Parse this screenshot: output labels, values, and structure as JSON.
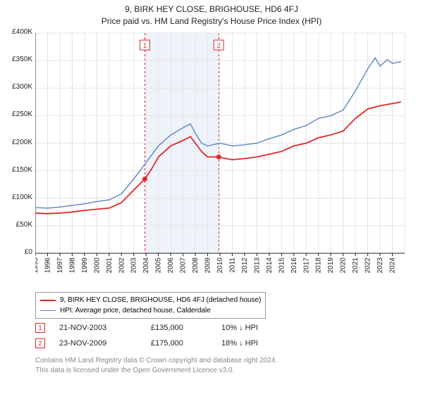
{
  "title_main": "9, BIRK HEY CLOSE, BRIGHOUSE, HD6 4FJ",
  "title_sub": "Price paid vs. HM Land Registry's House Price Index (HPI)",
  "chart": {
    "type": "line",
    "background_color": "#ffffff",
    "grid_color": "#e4e4e4",
    "axis_color": "#222222",
    "tick_fontsize": 10,
    "ylabel_prefix": "£",
    "ylim": [
      0,
      400000
    ],
    "ytick_step": 50000,
    "yticks": [
      "£0",
      "£50K",
      "£100K",
      "£150K",
      "£200K",
      "£250K",
      "£300K",
      "£350K",
      "£400K"
    ],
    "x_start_year": 1995,
    "x_end_year": 2025,
    "xticks": [
      "1995",
      "1996",
      "1997",
      "1998",
      "1999",
      "2000",
      "2001",
      "2002",
      "2003",
      "2004",
      "2005",
      "2006",
      "2007",
      "2008",
      "2009",
      "2010",
      "2011",
      "2012",
      "2013",
      "2014",
      "2015",
      "2016",
      "2017",
      "2018",
      "2019",
      "2020",
      "2021",
      "2022",
      "2023",
      "2024"
    ],
    "shaded_band": {
      "start": 2003.9,
      "end": 2009.9,
      "fill": "#eef3fa",
      "dash_color": "#e3252a"
    },
    "series": [
      {
        "name": "property",
        "label": "9, BIRK HEY CLOSE, BRIGHOUSE, HD6 4FJ (detached house)",
        "color": "#e3252a",
        "line_width": 1.8,
        "values": [
          [
            1995,
            73000
          ],
          [
            1996,
            72000
          ],
          [
            1997,
            73000
          ],
          [
            1998,
            75000
          ],
          [
            1999,
            78000
          ],
          [
            2000,
            80000
          ],
          [
            2001,
            82000
          ],
          [
            2002,
            92000
          ],
          [
            2003,
            115000
          ],
          [
            2003.9,
            135000
          ],
          [
            2004.5,
            155000
          ],
          [
            2005,
            175000
          ],
          [
            2006,
            195000
          ],
          [
            2007,
            205000
          ],
          [
            2007.6,
            212000
          ],
          [
            2008,
            200000
          ],
          [
            2008.5,
            185000
          ],
          [
            2009,
            175000
          ],
          [
            2009.9,
            175000
          ],
          [
            2010.5,
            172000
          ],
          [
            2011,
            170000
          ],
          [
            2012,
            172000
          ],
          [
            2013,
            175000
          ],
          [
            2014,
            180000
          ],
          [
            2015,
            185000
          ],
          [
            2016,
            195000
          ],
          [
            2017,
            200000
          ],
          [
            2018,
            210000
          ],
          [
            2019,
            215000
          ],
          [
            2020,
            222000
          ],
          [
            2021,
            245000
          ],
          [
            2022,
            262000
          ],
          [
            2023,
            268000
          ],
          [
            2024,
            272000
          ],
          [
            2024.7,
            275000
          ]
        ]
      },
      {
        "name": "hpi",
        "label": "HPI: Average price, detached house, Calderdale",
        "color": "#5b84c4",
        "line_width": 1.4,
        "values": [
          [
            1995,
            83000
          ],
          [
            1996,
            82000
          ],
          [
            1997,
            84000
          ],
          [
            1998,
            87000
          ],
          [
            1999,
            90000
          ],
          [
            2000,
            94000
          ],
          [
            2001,
            97000
          ],
          [
            2002,
            108000
          ],
          [
            2003,
            135000
          ],
          [
            2004,
            165000
          ],
          [
            2005,
            195000
          ],
          [
            2006,
            215000
          ],
          [
            2007,
            228000
          ],
          [
            2007.6,
            235000
          ],
          [
            2008,
            218000
          ],
          [
            2008.5,
            200000
          ],
          [
            2009,
            195000
          ],
          [
            2010,
            200000
          ],
          [
            2011,
            195000
          ],
          [
            2012,
            197000
          ],
          [
            2013,
            200000
          ],
          [
            2014,
            208000
          ],
          [
            2015,
            215000
          ],
          [
            2016,
            225000
          ],
          [
            2017,
            232000
          ],
          [
            2018,
            245000
          ],
          [
            2019,
            250000
          ],
          [
            2020,
            260000
          ],
          [
            2021,
            295000
          ],
          [
            2022,
            335000
          ],
          [
            2022.6,
            355000
          ],
          [
            2023,
            340000
          ],
          [
            2023.6,
            352000
          ],
          [
            2024,
            345000
          ],
          [
            2024.7,
            348000
          ]
        ]
      }
    ],
    "sale_markers": [
      {
        "id": "1",
        "x": 2003.9,
        "y": 135000,
        "color": "#e3252a"
      },
      {
        "id": "2",
        "x": 2009.9,
        "y": 175000,
        "color": "#e3252a"
      }
    ]
  },
  "legend": {
    "border_color": "#999999",
    "items": [
      {
        "color": "#e3252a",
        "width": 2,
        "label": "9, BIRK HEY CLOSE, BRIGHOUSE, HD6 4FJ (detached house)"
      },
      {
        "color": "#5b84c4",
        "width": 1.5,
        "label": "HPI: Average price, detached house, Calderdale"
      }
    ]
  },
  "sales": [
    {
      "marker": "1",
      "date": "21-NOV-2003",
      "price": "£135,000",
      "diff": "10% ↓ HPI"
    },
    {
      "marker": "2",
      "date": "23-NOV-2009",
      "price": "£175,000",
      "diff": "18% ↓ HPI"
    }
  ],
  "footer_line1": "Contains HM Land Registry data © Crown copyright and database right 2024.",
  "footer_line2": "This data is licensed under the Open Government Licence v3.0."
}
